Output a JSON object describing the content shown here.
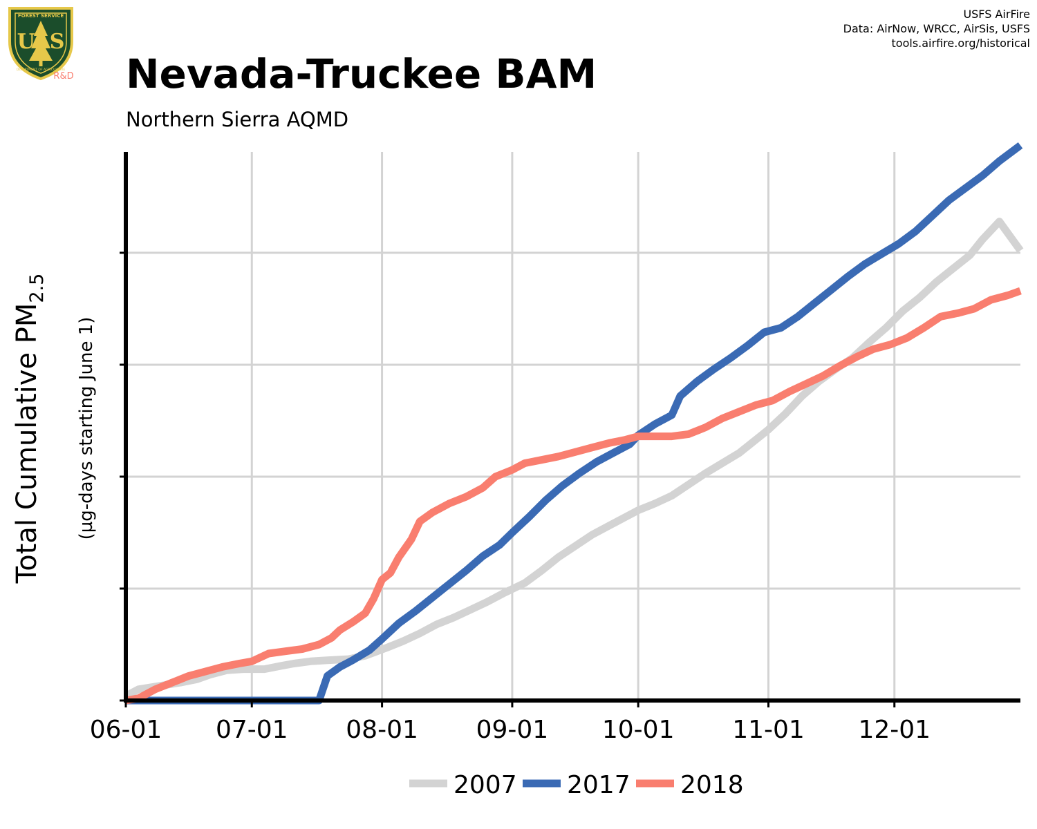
{
  "header": {
    "title": "Nevada-Truckee BAM",
    "subtitle": "Northern Sierra AQMD",
    "credits": [
      "USFS AirFire",
      "Data: AirNow, WRCC, AirSis, USFS",
      "tools.airfire.org/historical"
    ],
    "logo": {
      "top_text": "FOREST SERVICE",
      "letters": "U  S",
      "bottom_text": "DEPARTMENT OF AGRICULTURE",
      "badge": "R&D"
    }
  },
  "chart_data": {
    "type": "line",
    "ylabel_main": "Total Cumulative PM",
    "ylabel_sub": "2.5",
    "ylabel_units": "(µg-days starting June 1)",
    "x_ticks": [
      "06-01",
      "07-01",
      "08-01",
      "09-01",
      "10-01",
      "11-01",
      "12-01"
    ],
    "x_tick_days": [
      0,
      30,
      61,
      92,
      122,
      153,
      183
    ],
    "xlim_days": [
      0,
      213
    ],
    "ylim": [
      0,
      4.95
    ],
    "y_gridlines": [
      1,
      2,
      3,
      4
    ],
    "grid": true,
    "legend_position": "bottom",
    "series": [
      {
        "name": "2007",
        "color": "#d3d3d3",
        "points": [
          [
            0,
            0.04
          ],
          [
            3,
            0.1
          ],
          [
            8,
            0.13
          ],
          [
            13,
            0.16
          ],
          [
            17,
            0.19
          ],
          [
            20,
            0.23
          ],
          [
            24,
            0.27
          ],
          [
            28,
            0.28
          ],
          [
            33,
            0.28
          ],
          [
            37,
            0.31
          ],
          [
            40,
            0.33
          ],
          [
            44,
            0.35
          ],
          [
            48,
            0.36
          ],
          [
            53,
            0.37
          ],
          [
            57,
            0.4
          ],
          [
            62,
            0.47
          ],
          [
            66,
            0.53
          ],
          [
            70,
            0.6
          ],
          [
            74,
            0.68
          ],
          [
            78,
            0.74
          ],
          [
            82,
            0.81
          ],
          [
            86,
            0.88
          ],
          [
            90,
            0.96
          ],
          [
            95,
            1.05
          ],
          [
            99,
            1.16
          ],
          [
            103,
            1.28
          ],
          [
            107,
            1.38
          ],
          [
            111,
            1.48
          ],
          [
            115,
            1.56
          ],
          [
            119,
            1.64
          ],
          [
            122,
            1.7
          ],
          [
            126,
            1.76
          ],
          [
            130,
            1.83
          ],
          [
            134,
            1.93
          ],
          [
            138,
            2.03
          ],
          [
            142,
            2.12
          ],
          [
            146,
            2.21
          ],
          [
            150,
            2.33
          ],
          [
            153,
            2.42
          ],
          [
            157,
            2.56
          ],
          [
            161,
            2.72
          ],
          [
            165,
            2.85
          ],
          [
            169,
            2.96
          ],
          [
            173,
            3.06
          ],
          [
            177,
            3.2
          ],
          [
            181,
            3.33
          ],
          [
            185,
            3.48
          ],
          [
            189,
            3.6
          ],
          [
            193,
            3.74
          ],
          [
            197,
            3.86
          ],
          [
            201,
            3.98
          ],
          [
            204,
            4.12
          ],
          [
            208,
            4.28
          ],
          [
            213,
            4.02
          ]
        ]
      },
      {
        "name": "2017",
        "color": "#3a6ab4",
        "points": [
          [
            0,
            0
          ],
          [
            46,
            0
          ],
          [
            48,
            0.22
          ],
          [
            51,
            0.3
          ],
          [
            54,
            0.36
          ],
          [
            58,
            0.45
          ],
          [
            61,
            0.55
          ],
          [
            65,
            0.69
          ],
          [
            69,
            0.8
          ],
          [
            73,
            0.92
          ],
          [
            77,
            1.04
          ],
          [
            81,
            1.16
          ],
          [
            85,
            1.29
          ],
          [
            89,
            1.39
          ],
          [
            92,
            1.5
          ],
          [
            96,
            1.64
          ],
          [
            100,
            1.79
          ],
          [
            104,
            1.92
          ],
          [
            108,
            2.03
          ],
          [
            112,
            2.13
          ],
          [
            116,
            2.21
          ],
          [
            120,
            2.29
          ],
          [
            122,
            2.37
          ],
          [
            126,
            2.47
          ],
          [
            130,
            2.55
          ],
          [
            132,
            2.72
          ],
          [
            136,
            2.85
          ],
          [
            140,
            2.96
          ],
          [
            144,
            3.06
          ],
          [
            148,
            3.17
          ],
          [
            152,
            3.29
          ],
          [
            156,
            3.33
          ],
          [
            160,
            3.43
          ],
          [
            164,
            3.55
          ],
          [
            168,
            3.67
          ],
          [
            172,
            3.79
          ],
          [
            176,
            3.9
          ],
          [
            180,
            3.99
          ],
          [
            184,
            4.08
          ],
          [
            188,
            4.19
          ],
          [
            192,
            4.33
          ],
          [
            196,
            4.47
          ],
          [
            200,
            4.58
          ],
          [
            204,
            4.69
          ],
          [
            208,
            4.82
          ],
          [
            213,
            4.96
          ]
        ]
      },
      {
        "name": "2018",
        "color": "#f97e6f",
        "points": [
          [
            0,
            0
          ],
          [
            3,
            0.02
          ],
          [
            7,
            0.1
          ],
          [
            11,
            0.16
          ],
          [
            15,
            0.22
          ],
          [
            19,
            0.26
          ],
          [
            23,
            0.3
          ],
          [
            27,
            0.33
          ],
          [
            30,
            0.35
          ],
          [
            34,
            0.42
          ],
          [
            38,
            0.44
          ],
          [
            42,
            0.46
          ],
          [
            46,
            0.5
          ],
          [
            49,
            0.56
          ],
          [
            51,
            0.63
          ],
          [
            54,
            0.7
          ],
          [
            57,
            0.78
          ],
          [
            59,
            0.91
          ],
          [
            61,
            1.08
          ],
          [
            63,
            1.14
          ],
          [
            65,
            1.28
          ],
          [
            68,
            1.44
          ],
          [
            70,
            1.6
          ],
          [
            73,
            1.68
          ],
          [
            77,
            1.76
          ],
          [
            81,
            1.82
          ],
          [
            85,
            1.9
          ],
          [
            88,
            2.0
          ],
          [
            92,
            2.06
          ],
          [
            95,
            2.12
          ],
          [
            99,
            2.15
          ],
          [
            103,
            2.18
          ],
          [
            107,
            2.22
          ],
          [
            111,
            2.26
          ],
          [
            115,
            2.3
          ],
          [
            119,
            2.33
          ],
          [
            122,
            2.36
          ],
          [
            126,
            2.36
          ],
          [
            130,
            2.36
          ],
          [
            134,
            2.38
          ],
          [
            138,
            2.44
          ],
          [
            142,
            2.52
          ],
          [
            146,
            2.58
          ],
          [
            150,
            2.64
          ],
          [
            154,
            2.68
          ],
          [
            158,
            2.76
          ],
          [
            162,
            2.83
          ],
          [
            166,
            2.9
          ],
          [
            170,
            2.99
          ],
          [
            174,
            3.07
          ],
          [
            178,
            3.14
          ],
          [
            182,
            3.18
          ],
          [
            186,
            3.24
          ],
          [
            190,
            3.33
          ],
          [
            194,
            3.43
          ],
          [
            198,
            3.46
          ],
          [
            202,
            3.5
          ],
          [
            206,
            3.58
          ],
          [
            210,
            3.62
          ],
          [
            213,
            3.66
          ]
        ]
      }
    ]
  }
}
